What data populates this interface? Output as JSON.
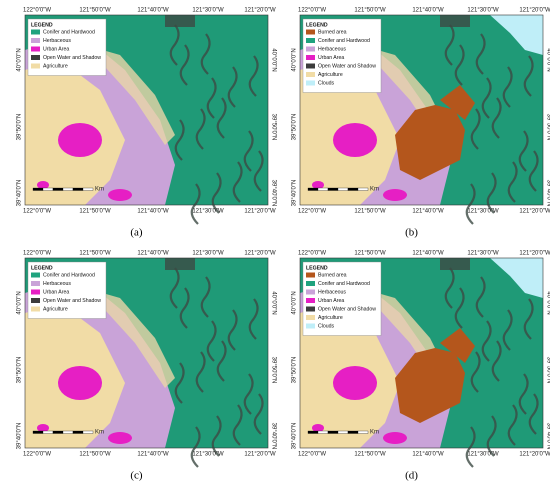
{
  "axes": {
    "lon_labels": [
      "122°0'0\"W",
      "121°50'0\"W",
      "121°40'0\"W",
      "121°30'0\"W",
      "121°20'0\"W"
    ],
    "lat_labels": [
      "40°0'0\"N",
      "39°50'0\"N",
      "39°40'0\"N"
    ]
  },
  "panels": [
    {
      "label": "(a)",
      "legend_title": "LEGEND",
      "scale_unit": "Km",
      "legend": [
        {
          "name": "Conifer and Hardwood",
          "color": "#1fa37e"
        },
        {
          "name": "Herbaceous",
          "color": "#c9a3d8"
        },
        {
          "name": "Urban Area",
          "color": "#e61fc4"
        },
        {
          "name": "Open Water and Shadow",
          "color": "#3c3c3c"
        },
        {
          "name": "Agriculture",
          "color": "#f1dca6"
        }
      ]
    },
    {
      "label": "(b)",
      "legend_title": "LEGEND",
      "scale_unit": "Km",
      "legend": [
        {
          "name": "Burned area",
          "color": "#b4561c"
        },
        {
          "name": "Conifer and Hardwood",
          "color": "#1fa37e"
        },
        {
          "name": "Herbaceous",
          "color": "#c9a3d8"
        },
        {
          "name": "Urban Area",
          "color": "#e61fc4"
        },
        {
          "name": "Open Water and Shadow",
          "color": "#3c3c3c"
        },
        {
          "name": "Agriculture",
          "color": "#f1dca6"
        },
        {
          "name": "Clouds",
          "color": "#bfeef8"
        }
      ]
    },
    {
      "label": "(c)",
      "legend_title": "LEGEND",
      "scale_unit": "Km",
      "legend": [
        {
          "name": "Conifer and Hardwood",
          "color": "#1fa37e"
        },
        {
          "name": "Herbaceous",
          "color": "#c9a3d8"
        },
        {
          "name": "Urban Area",
          "color": "#e61fc4"
        },
        {
          "name": "Open Water and Shadow",
          "color": "#3c3c3c"
        },
        {
          "name": "Agriculture",
          "color": "#f1dca6"
        }
      ]
    },
    {
      "label": "(d)",
      "legend_title": "LEGEND",
      "scale_unit": "Km",
      "legend": [
        {
          "name": "Burned area",
          "color": "#b4561c"
        },
        {
          "name": "Conifer and Hardwood",
          "color": "#1fa37e"
        },
        {
          "name": "Herbaceous",
          "color": "#c9a3d8"
        },
        {
          "name": "Urban Area",
          "color": "#e61fc4"
        },
        {
          "name": "Open Water and Shadow",
          "color": "#3c3c3c"
        },
        {
          "name": "Agriculture",
          "color": "#f1dca6"
        },
        {
          "name": "Clouds",
          "color": "#bfeef8"
        }
      ]
    }
  ]
}
